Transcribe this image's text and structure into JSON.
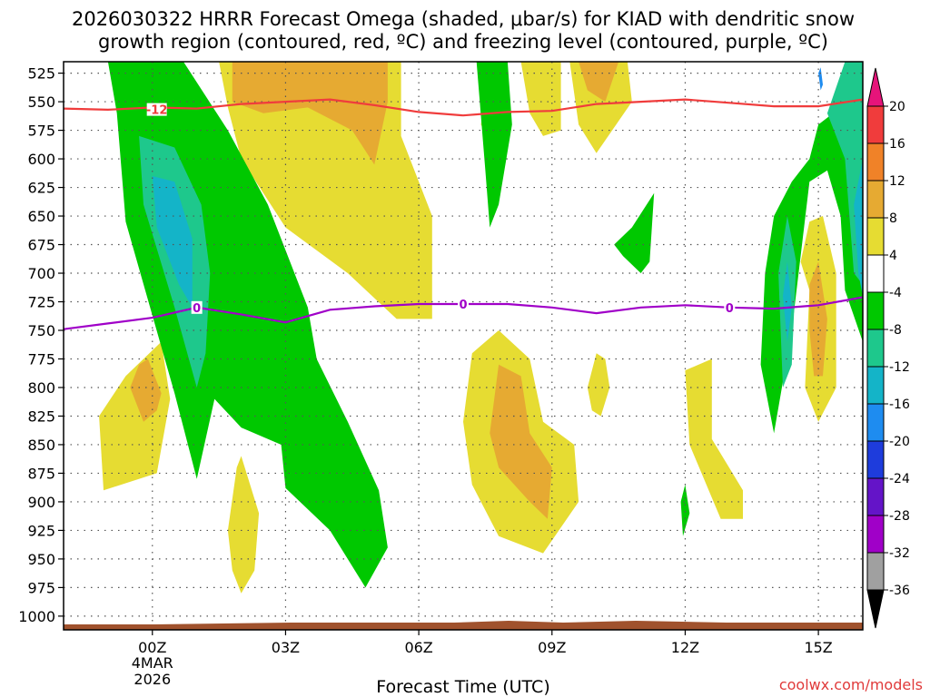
{
  "chart_data": {
    "type": "heatmap",
    "title_line1": "2026030322 HRRR Forecast Omega (shaded, μbar/s) for KIAD with dendritic snow",
    "title_line2": "growth region (contoured, red, ºC) and freezing level (contoured, purple, ºC)",
    "xlabel": "Forecast Time (UTC)",
    "credit": "coolwx.com/models",
    "x_ticks": [
      {
        "hour": 0,
        "label": "00Z",
        "sub1": "4MAR",
        "sub2": "2026"
      },
      {
        "hour": 3,
        "label": "03Z"
      },
      {
        "hour": 6,
        "label": "06Z"
      },
      {
        "hour": 9,
        "label": "09Z"
      },
      {
        "hour": 12,
        "label": "12Z"
      },
      {
        "hour": 15,
        "label": "15Z"
      }
    ],
    "x_range_hours": [
      -2,
      16
    ],
    "y_levels_mb": [
      "525",
      "550",
      "575",
      "600",
      "625",
      "650",
      "675",
      "700",
      "725",
      "750",
      "775",
      "800",
      "825",
      "850",
      "875",
      "900",
      "925",
      "950",
      "975",
      "1000"
    ],
    "y_range_mb": [
      515,
      1012
    ],
    "colorbar": {
      "labels": [
        "20",
        "16",
        "12",
        "8",
        "4",
        "-4",
        "-8",
        "-12",
        "-16",
        "-20",
        "-24",
        "-28",
        "-32",
        "-36"
      ],
      "bands": [
        {
          "min": 16,
          "max": 20,
          "color": "#f03c3c"
        },
        {
          "min": 12,
          "max": 16,
          "color": "#f08228"
        },
        {
          "min": 8,
          "max": 12,
          "color": "#e6aa32"
        },
        {
          "min": 4,
          "max": 8,
          "color": "#e6dc32"
        },
        {
          "min": -4,
          "max": 4,
          "color": "#ffffff"
        },
        {
          "min": -8,
          "max": -4,
          "color": "#00c800"
        },
        {
          "min": -12,
          "max": -8,
          "color": "#1ec88c"
        },
        {
          "min": -16,
          "max": -12,
          "color": "#14b4c8"
        },
        {
          "min": -20,
          "max": -16,
          "color": "#1e8cf0"
        },
        {
          "min": -24,
          "max": -20,
          "color": "#1e3cdc"
        },
        {
          "min": -28,
          "max": -24,
          "color": "#6414c8"
        },
        {
          "min": -32,
          "max": -28,
          "color": "#a000c8"
        },
        {
          "min": -36,
          "max": -32,
          "color": "#a0a0a0"
        }
      ],
      "top_arrow_color": "#e6147a",
      "bottom_arrow_color": "#000000"
    },
    "contours": {
      "dgz_red": {
        "label": "-12",
        "label_at": [
          0.1,
          552
        ],
        "color": "#f03c3c",
        "points": [
          [
            -2,
            556
          ],
          [
            -1,
            557
          ],
          [
            0,
            555
          ],
          [
            1,
            556
          ],
          [
            2,
            552
          ],
          [
            3,
            550
          ],
          [
            4,
            548
          ],
          [
            5,
            553
          ],
          [
            6,
            559
          ],
          [
            7,
            562
          ],
          [
            8,
            559
          ],
          [
            9,
            558
          ],
          [
            10,
            552
          ],
          [
            11,
            550
          ],
          [
            12,
            548
          ],
          [
            13,
            551
          ],
          [
            14,
            554
          ],
          [
            15,
            554
          ],
          [
            16,
            548
          ]
        ]
      },
      "freezing_purple": {
        "label": "0",
        "label_positions": [
          [
            1,
            730
          ],
          [
            7,
            727
          ],
          [
            13,
            730
          ]
        ],
        "color": "#a000c8",
        "points": [
          [
            -2,
            749
          ],
          [
            -1,
            744
          ],
          [
            0,
            739
          ],
          [
            1,
            730
          ],
          [
            2,
            736
          ],
          [
            3,
            743
          ],
          [
            4,
            732
          ],
          [
            5,
            729
          ],
          [
            6,
            727
          ],
          [
            7,
            727
          ],
          [
            8,
            727
          ],
          [
            9,
            730
          ],
          [
            10,
            735
          ],
          [
            11,
            730
          ],
          [
            12,
            728
          ],
          [
            13,
            730
          ],
          [
            14,
            731
          ],
          [
            15,
            728
          ],
          [
            16,
            721
          ]
        ]
      }
    },
    "regions": [
      {
        "color": "#e6dc32",
        "points": [
          [
            1.5,
            515
          ],
          [
            5.6,
            515
          ],
          [
            5.6,
            580
          ],
          [
            6.3,
            650
          ],
          [
            6.3,
            740
          ],
          [
            5.5,
            740
          ],
          [
            4.4,
            700
          ],
          [
            3.0,
            660
          ],
          [
            2.0,
            600
          ],
          [
            1.7,
            555
          ]
        ]
      },
      {
        "color": "#e6aa32",
        "points": [
          [
            1.8,
            515
          ],
          [
            5.3,
            515
          ],
          [
            5.3,
            550
          ],
          [
            5.0,
            605
          ],
          [
            4.5,
            575
          ],
          [
            3.5,
            555
          ],
          [
            2.5,
            560
          ],
          [
            1.8,
            550
          ]
        ]
      },
      {
        "color": "#e6dc32",
        "points": [
          [
            -1.2,
            825
          ],
          [
            -0.6,
            790
          ],
          [
            0.2,
            760
          ],
          [
            0.4,
            810
          ],
          [
            0.1,
            875
          ],
          [
            -1.1,
            890
          ]
        ]
      },
      {
        "color": "#e6aa32",
        "points": [
          [
            -0.5,
            800
          ],
          [
            -0.3,
            780
          ],
          [
            -0.1,
            775
          ],
          [
            0.2,
            805
          ],
          [
            0.1,
            820
          ],
          [
            -0.2,
            830
          ]
        ]
      },
      {
        "color": "#e6dc32",
        "points": [
          [
            1.7,
            925
          ],
          [
            1.9,
            870
          ],
          [
            2.0,
            860
          ],
          [
            2.4,
            910
          ],
          [
            2.3,
            960
          ],
          [
            2.0,
            980
          ],
          [
            1.8,
            960
          ]
        ]
      },
      {
        "color": "#e6dc32",
        "points": [
          [
            7.2,
            885
          ],
          [
            7.0,
            830
          ],
          [
            7.2,
            770
          ],
          [
            7.8,
            750
          ],
          [
            8.5,
            775
          ],
          [
            8.8,
            830
          ],
          [
            9.5,
            850
          ],
          [
            9.6,
            900
          ],
          [
            8.8,
            945
          ],
          [
            7.8,
            930
          ]
        ]
      },
      {
        "color": "#e6aa32",
        "points": [
          [
            7.6,
            840
          ],
          [
            7.8,
            780
          ],
          [
            8.3,
            790
          ],
          [
            8.5,
            840
          ],
          [
            9.0,
            870
          ],
          [
            8.9,
            915
          ],
          [
            8.5,
            900
          ],
          [
            7.8,
            870
          ]
        ]
      },
      {
        "color": "#e6dc32",
        "points": [
          [
            8.3,
            515
          ],
          [
            9.2,
            515
          ],
          [
            9.2,
            575
          ],
          [
            8.8,
            580
          ],
          [
            8.5,
            560
          ]
        ]
      },
      {
        "color": "#e6dc32",
        "points": [
          [
            7.5,
            540
          ],
          [
            7.7,
            545
          ],
          [
            7.6,
            585
          ],
          [
            7.4,
            570
          ]
        ]
      },
      {
        "color": "#e6dc32",
        "points": [
          [
            9.4,
            515
          ],
          [
            10.7,
            515
          ],
          [
            10.8,
            550
          ],
          [
            10.0,
            595
          ],
          [
            9.6,
            570
          ]
        ]
      },
      {
        "color": "#e6aa32",
        "points": [
          [
            9.6,
            515
          ],
          [
            10.5,
            515
          ],
          [
            10.2,
            550
          ],
          [
            9.8,
            540
          ]
        ]
      },
      {
        "color": "#e6dc32",
        "points": [
          [
            9.8,
            800
          ],
          [
            10.0,
            770
          ],
          [
            10.2,
            775
          ],
          [
            10.3,
            800
          ],
          [
            10.1,
            825
          ],
          [
            9.9,
            820
          ]
        ]
      },
      {
        "color": "#e6dc32",
        "points": [
          [
            12.0,
            785
          ],
          [
            12.6,
            775
          ],
          [
            12.6,
            845
          ],
          [
            13.3,
            890
          ],
          [
            13.3,
            915
          ],
          [
            12.8,
            915
          ],
          [
            12.1,
            850
          ]
        ]
      },
      {
        "color": "#e6dc32",
        "points": [
          [
            14.8,
            715
          ],
          [
            14.6,
            690
          ],
          [
            14.8,
            655
          ],
          [
            15.1,
            650
          ],
          [
            15.4,
            700
          ],
          [
            15.4,
            800
          ],
          [
            15.0,
            830
          ],
          [
            14.7,
            800
          ]
        ]
      },
      {
        "color": "#e6aa32",
        "points": [
          [
            14.8,
            750
          ],
          [
            14.8,
            710
          ],
          [
            15.0,
            690
          ],
          [
            15.2,
            740
          ],
          [
            15.1,
            790
          ],
          [
            14.9,
            790
          ]
        ]
      },
      {
        "color": "#00c800",
        "points": [
          [
            -1.0,
            515
          ],
          [
            0.7,
            515
          ],
          [
            1.7,
            575
          ],
          [
            2.6,
            640
          ],
          [
            3.5,
            730
          ],
          [
            3.7,
            775
          ],
          [
            4.4,
            830
          ],
          [
            5.1,
            890
          ],
          [
            5.3,
            940
          ],
          [
            4.8,
            975
          ],
          [
            4.0,
            925
          ],
          [
            3.0,
            888
          ],
          [
            2.9,
            850
          ],
          [
            2.0,
            835
          ],
          [
            1.4,
            810
          ],
          [
            1.0,
            880
          ],
          [
            0.5,
            805
          ],
          [
            -0.6,
            655
          ],
          [
            -0.8,
            560
          ]
        ]
      },
      {
        "color": "#1ec88c",
        "points": [
          [
            -0.3,
            580
          ],
          [
            0.5,
            590
          ],
          [
            1.1,
            640
          ],
          [
            1.3,
            700
          ],
          [
            1.2,
            770
          ],
          [
            1.0,
            800
          ],
          [
            0.5,
            730
          ],
          [
            -0.2,
            640
          ]
        ]
      },
      {
        "color": "#14b4c8",
        "points": [
          [
            0.0,
            615
          ],
          [
            0.5,
            620
          ],
          [
            0.9,
            670
          ],
          [
            0.9,
            730
          ],
          [
            0.6,
            710
          ],
          [
            0.1,
            660
          ]
        ]
      },
      {
        "color": "#00c800",
        "points": [
          [
            7.3,
            515
          ],
          [
            8.0,
            515
          ],
          [
            8.1,
            570
          ],
          [
            7.8,
            640
          ],
          [
            7.6,
            660
          ],
          [
            7.5,
            610
          ]
        ]
      },
      {
        "color": "#00c800",
        "points": [
          [
            10.4,
            675
          ],
          [
            10.8,
            660
          ],
          [
            11.3,
            630
          ],
          [
            11.2,
            690
          ],
          [
            11.0,
            700
          ],
          [
            10.6,
            685
          ]
        ]
      },
      {
        "color": "#00c800",
        "points": [
          [
            11.9,
            900
          ],
          [
            12.0,
            885
          ],
          [
            12.1,
            910
          ],
          [
            11.95,
            930
          ]
        ]
      },
      {
        "color": "#00c800",
        "points": [
          [
            13.8,
            700
          ],
          [
            14.0,
            650
          ],
          [
            14.4,
            620
          ],
          [
            14.8,
            600
          ],
          [
            15.0,
            570
          ],
          [
            15.5,
            555
          ],
          [
            15.8,
            515
          ],
          [
            16.0,
            515
          ],
          [
            16.0,
            760
          ],
          [
            15.6,
            715
          ],
          [
            15.5,
            650
          ],
          [
            15.2,
            610
          ],
          [
            14.8,
            620
          ],
          [
            14.4,
            750
          ],
          [
            14.0,
            840
          ],
          [
            13.7,
            780
          ]
        ]
      },
      {
        "color": "#1ec88c",
        "points": [
          [
            15.2,
            560
          ],
          [
            15.6,
            515
          ],
          [
            16.0,
            515
          ],
          [
            16.0,
            710
          ],
          [
            15.8,
            700
          ],
          [
            15.6,
            600
          ]
        ]
      },
      {
        "color": "#1ec88c",
        "points": [
          [
            14.1,
            700
          ],
          [
            14.3,
            650
          ],
          [
            14.5,
            690
          ],
          [
            14.4,
            780
          ],
          [
            14.2,
            800
          ]
        ]
      },
      {
        "color": "#14b4c8",
        "points": [
          [
            14.2,
            720
          ],
          [
            14.3,
            690
          ],
          [
            14.4,
            730
          ],
          [
            14.3,
            760
          ]
        ]
      },
      {
        "color": "#14b4c8",
        "points": [
          [
            15.8,
            640
          ],
          [
            16.0,
            600
          ],
          [
            16.0,
            720
          ],
          [
            15.9,
            700
          ]
        ]
      },
      {
        "color": "#1e8cf0",
        "points": [
          [
            15.0,
            525
          ],
          [
            15.05,
            520
          ],
          [
            15.1,
            535
          ],
          [
            15.05,
            540
          ]
        ]
      }
    ]
  }
}
